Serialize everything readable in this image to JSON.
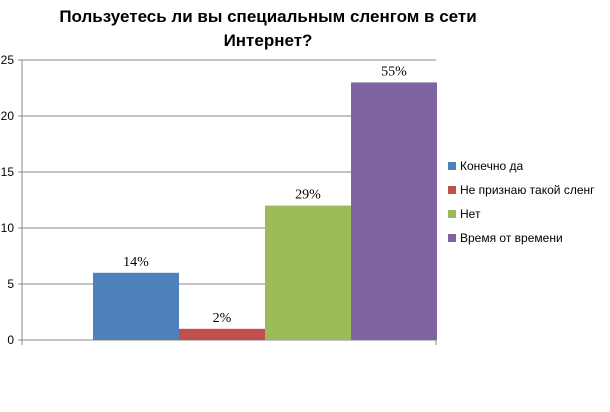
{
  "chart_data": {
    "type": "bar",
    "title_lines": [
      "Пользуетесь ли вы специальным сленгом в сети",
      "Интернет?"
    ],
    "ylim": [
      0,
      25
    ],
    "yticks": [
      0,
      5,
      10,
      15,
      20,
      25
    ],
    "grid": true,
    "legend_position": "right",
    "series": [
      {
        "name": "Конечно да",
        "value": 6,
        "label": "14%",
        "color": "#4F81BD"
      },
      {
        "name": "Не признаю такой сленг",
        "value": 1,
        "label": "2%",
        "color": "#C0504D"
      },
      {
        "name": "Нет",
        "value": 12,
        "label": "29%",
        "color": "#9BBB59"
      },
      {
        "name": "Время от времени",
        "value": 23,
        "label": "55%",
        "color": "#8064A2"
      }
    ]
  }
}
